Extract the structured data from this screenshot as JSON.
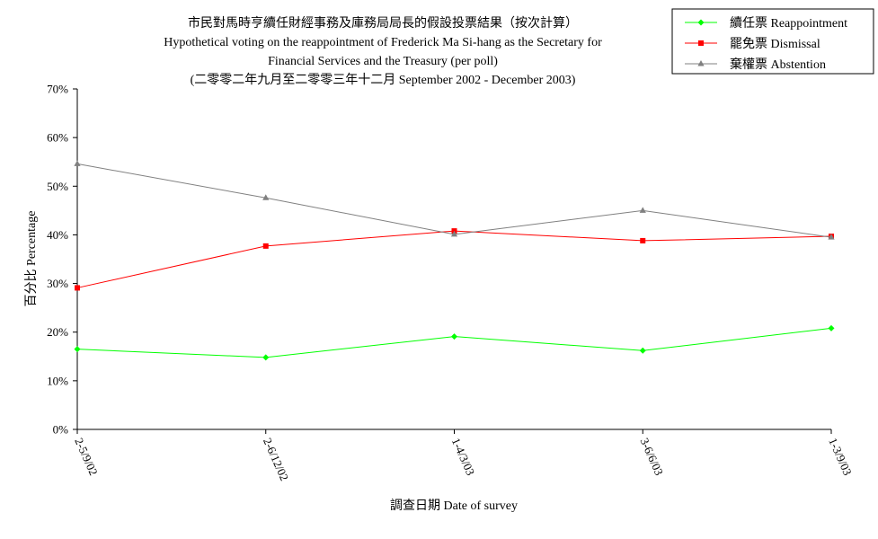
{
  "chart_data": {
    "type": "line",
    "title_lines": [
      "市民對馬時亨續任財經事務及庫務局局長的假設投票結果（按次計算）",
      "Hypothetical voting on the reappointment of  Frederick Ma Si-hang as the Secretary for",
      "Financial Services and the Treasury (per poll)",
      "(二零零二年九月至二零零三年十二月 September 2002 - December 2003)"
    ],
    "xlabel": "調查日期 Date of survey",
    "ylabel": "百分比 Percentage",
    "categories": [
      "2-5/9/02",
      "2-6/12/02",
      "1-4/3/03",
      "3-6/6/03",
      "1-3/9/03"
    ],
    "ylim": [
      0,
      70
    ],
    "yticks": [
      "0%",
      "10%",
      "20%",
      "30%",
      "40%",
      "50%",
      "60%",
      "70%"
    ],
    "grid": false,
    "legend_position": "top-right",
    "series": [
      {
        "name": "續任票 Reappointment",
        "color": "#00ff00",
        "marker": "diamond",
        "values": [
          16.5,
          14.8,
          19.1,
          16.2,
          20.8
        ]
      },
      {
        "name": "罷免票 Dismissal",
        "color": "#ff0000",
        "marker": "square",
        "values": [
          29.1,
          37.7,
          40.8,
          38.8,
          39.7
        ]
      },
      {
        "name": "棄權票 Abstention",
        "color": "#808080",
        "marker": "triangle",
        "values": [
          54.6,
          47.6,
          40.1,
          45.0,
          39.5
        ]
      }
    ]
  }
}
